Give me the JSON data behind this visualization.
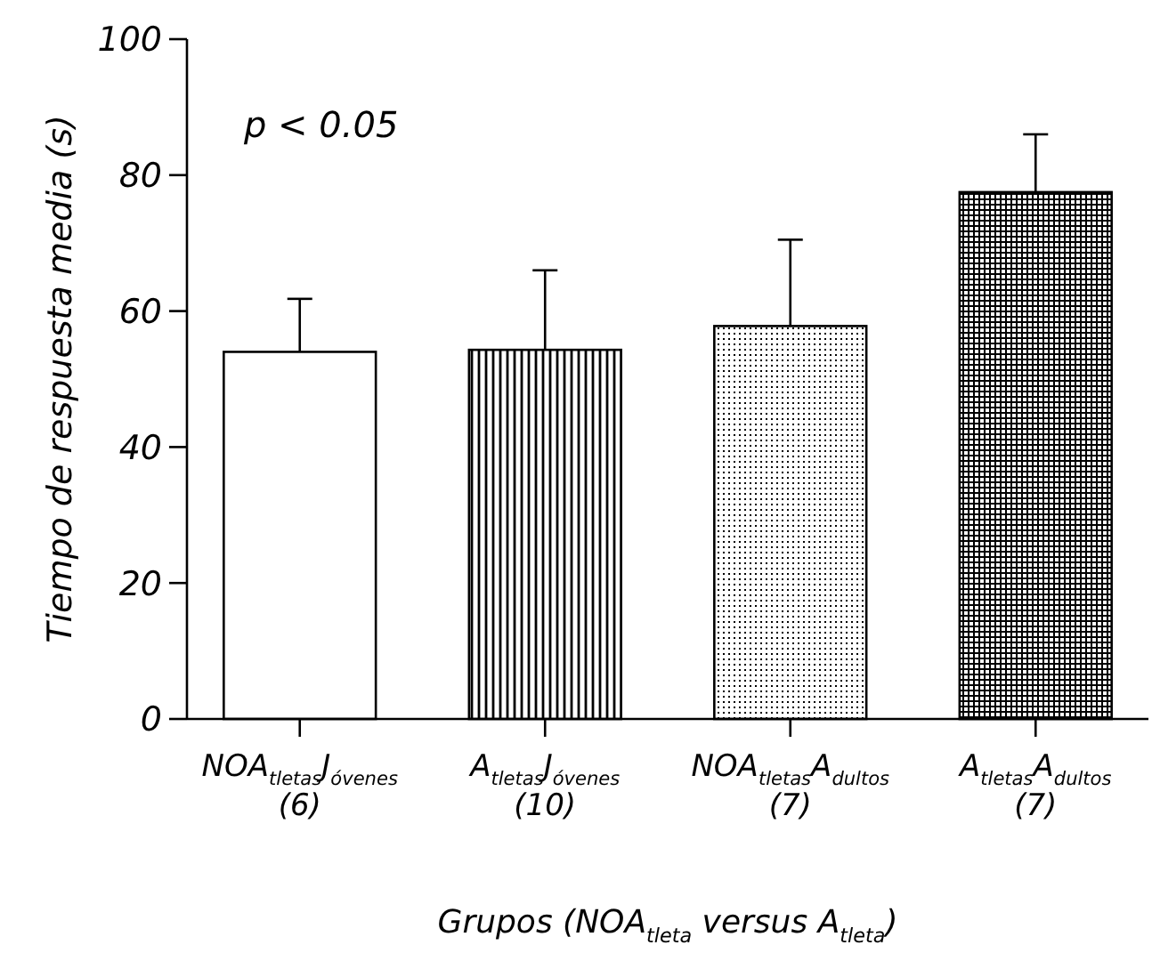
{
  "chart_data": {
    "type": "bar",
    "xlabel": "Grupos (NOA$_{tleta}$ versus A$_{tleta}$)",
    "ylabel": "Tiempo de respuesta media (s)",
    "categories": [
      "NOA$_{tletas}$J$_{óvenes}$\n(6)",
      "A$_{tletas}$J$_{óvenes}$\n(10)",
      "NOA$_{tletas}$A$_{dultos}$\n(7)",
      "A$_{tletas}$A$_{dultos}$\n(7)"
    ],
    "values": [
      54,
      54.3,
      57.8,
      77.5
    ],
    "errors": [
      [
        54,
        61.8
      ],
      [
        54.3,
        66
      ],
      [
        57.8,
        70.5
      ],
      [
        77.5,
        86
      ]
    ],
    "colors": [
      "#ffffff",
      "#000000",
      "#000000",
      "#000000"
    ],
    "ylim": [
      0,
      100
    ],
    "yticks": [
      0,
      20,
      40,
      60,
      80,
      100
    ],
    "annotations": [
      "p < 0.05"
    ]
  }
}
